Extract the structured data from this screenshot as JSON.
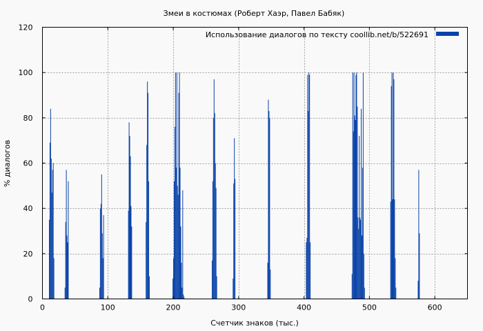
{
  "chart_data": {
    "type": "bar",
    "title": "Змеи в костюмах (Роберт Хаэр, Павел Бабяк)",
    "xlabel": "Счетчик знаков (тыс.)",
    "ylabel": "% диалогов",
    "xlim": [
      0,
      650
    ],
    "ylim": [
      0,
      120
    ],
    "xticks": [
      0,
      100,
      200,
      300,
      400,
      500,
      600
    ],
    "yticks": [
      0,
      20,
      40,
      60,
      80,
      100,
      120
    ],
    "grid": true,
    "legend_position": "top-right",
    "colors": {
      "series": "#0a43a8",
      "background": "#f9f9f9",
      "grid": "#a0a0a0"
    },
    "series": [
      {
        "name": "Использование диалогов по тексту  coollib.net/b/522691",
        "x": [
          10,
          11,
          12,
          13,
          14,
          15,
          16,
          17,
          34,
          35,
          36,
          37,
          38,
          39,
          87,
          88,
          89,
          90,
          91,
          92,
          93,
          131,
          132,
          133,
          134,
          135,
          136,
          158,
          159,
          160,
          161,
          162,
          163,
          199,
          200,
          201,
          202,
          203,
          204,
          205,
          206,
          207,
          208,
          209,
          210,
          211,
          212,
          213,
          214,
          215,
          216,
          259,
          260,
          261,
          262,
          263,
          264,
          265,
          266,
          291,
          292,
          293,
          294,
          344,
          345,
          346,
          347,
          348,
          403,
          404,
          405,
          406,
          407,
          408,
          409,
          473,
          474,
          475,
          476,
          477,
          478,
          479,
          480,
          481,
          482,
          483,
          484,
          485,
          486,
          487,
          488,
          489,
          490,
          491,
          492,
          532,
          533,
          534,
          535,
          536,
          537,
          538,
          539,
          540,
          574,
          575,
          576
        ],
        "values": [
          35,
          69,
          84,
          62,
          47,
          57,
          60,
          18,
          5,
          34,
          57,
          28,
          25,
          52,
          5,
          40,
          42,
          55,
          29,
          18,
          37,
          39,
          78,
          72,
          63,
          41,
          32,
          34,
          68,
          96,
          91,
          52,
          10,
          9,
          18,
          52,
          76,
          100,
          58,
          100,
          50,
          46,
          91,
          100,
          58,
          32,
          16,
          5,
          48,
          2,
          1,
          17,
          52,
          80,
          97,
          82,
          60,
          49,
          10,
          9,
          51,
          71,
          53,
          16,
          88,
          83,
          80,
          13,
          25,
          27,
          99,
          83,
          100,
          99,
          25,
          11,
          100,
          74,
          100,
          81,
          79,
          99,
          100,
          85,
          36,
          31,
          72,
          36,
          35,
          84,
          28,
          58,
          100,
          20,
          5,
          43,
          94,
          100,
          44,
          100,
          97,
          44,
          18,
          5,
          8,
          57,
          29
        ]
      }
    ]
  }
}
